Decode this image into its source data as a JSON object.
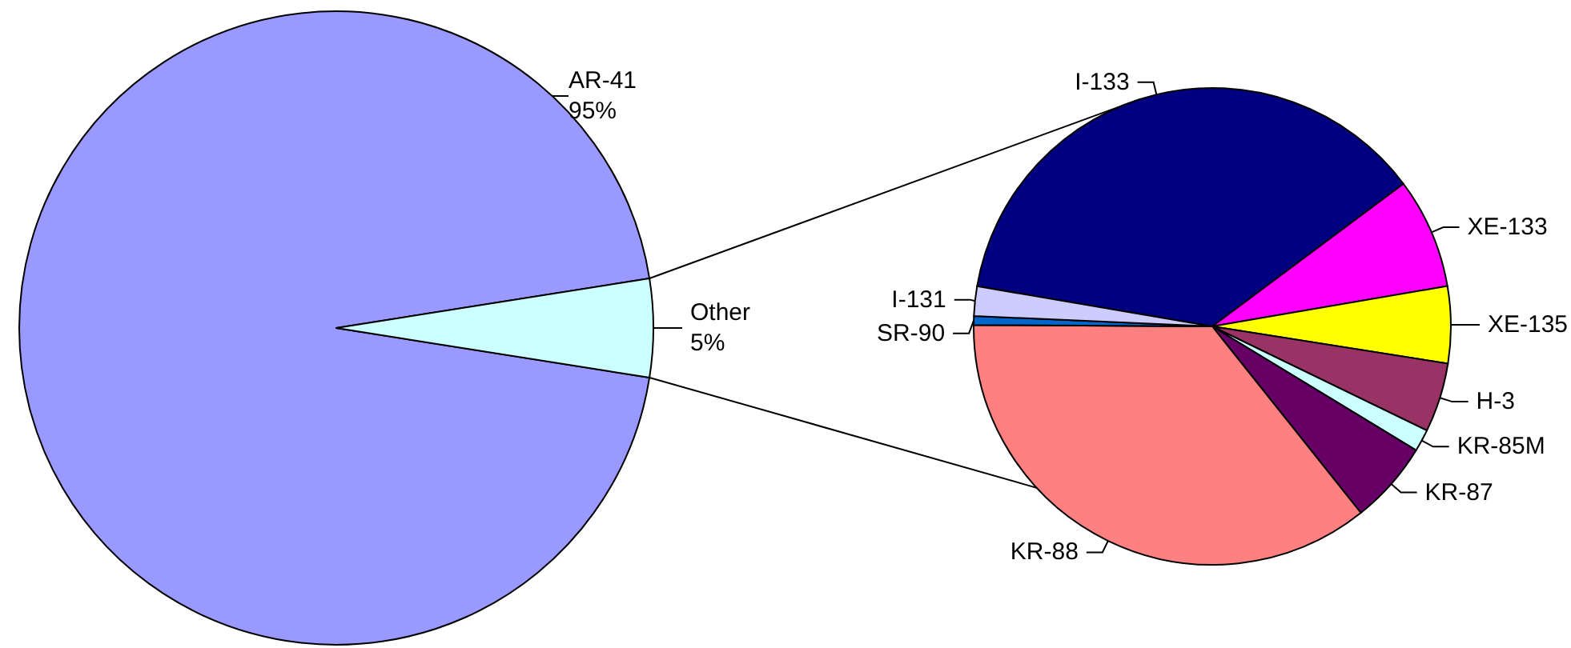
{
  "chart_data": [
    {
      "type": "pie",
      "categories": [
        "AR-41",
        "Other"
      ],
      "values": [
        95,
        5
      ],
      "colors": [
        "#9999ff",
        "#ccffff"
      ],
      "value_labels": [
        "95%",
        "5%"
      ]
    },
    {
      "type": "pie",
      "categories": [
        "I-133",
        "XE-133",
        "XE-135",
        "H-3",
        "KR-85M",
        "KR-87",
        "KR-88",
        "SR-90",
        "I-131"
      ],
      "values": [
        37.1,
        7.5,
        5.2,
        4.7,
        1.5,
        5.6,
        35.8,
        0.6,
        2.0
      ],
      "colors": [
        "#000080",
        "#ff00ff",
        "#ffff00",
        "#993366",
        "#ccffff",
        "#660066",
        "#ff8080",
        "#0066cc",
        "#ccccff"
      ]
    }
  ]
}
